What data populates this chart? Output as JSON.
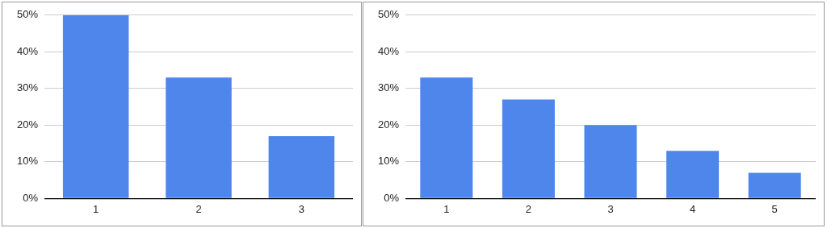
{
  "chart_data": [
    {
      "type": "bar",
      "categories": [
        "1",
        "2",
        "3"
      ],
      "values": [
        50,
        33,
        17
      ],
      "color": "#4e86ec",
      "ylim": [
        0,
        50
      ],
      "yticks": [
        {
          "value": 0,
          "label": "0%"
        },
        {
          "value": 10,
          "label": "10%"
        },
        {
          "value": 20,
          "label": "20%"
        },
        {
          "value": 30,
          "label": "30%"
        },
        {
          "value": 40,
          "label": "40%"
        },
        {
          "value": 50,
          "label": "50%"
        }
      ],
      "grid": "y"
    },
    {
      "type": "bar",
      "categories": [
        "1",
        "2",
        "3",
        "4",
        "5"
      ],
      "values": [
        33,
        27,
        20,
        13,
        7
      ],
      "color": "#4e86ec",
      "ylim": [
        0,
        50
      ],
      "yticks": [
        {
          "value": 0,
          "label": "0%"
        },
        {
          "value": 10,
          "label": "10%"
        },
        {
          "value": 20,
          "label": "20%"
        },
        {
          "value": 30,
          "label": "30%"
        },
        {
          "value": 40,
          "label": "40%"
        },
        {
          "value": 50,
          "label": "50%"
        }
      ],
      "grid": "y"
    }
  ]
}
